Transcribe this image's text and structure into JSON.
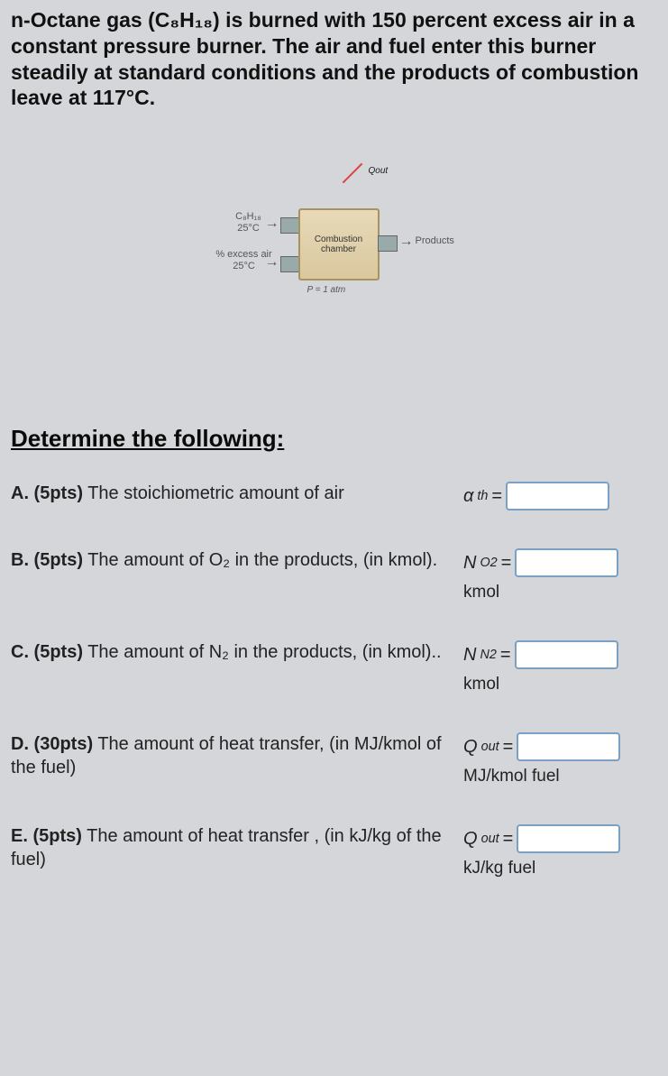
{
  "problem": {
    "line": "n-Octane gas (C₈H₁₈) is burned with 150 percent excess air in a constant pressure burner. The air and fuel enter this burner steadily at standard conditions and the products of combustion leave at 117°C."
  },
  "diagram": {
    "fuel_label_line1": "C₈H₁₈",
    "fuel_label_line2": "25°C",
    "air_label_line1": "% excess air",
    "air_label_line2": "25°C",
    "chamber_line1": "Combustion",
    "chamber_line2": "chamber",
    "pressure": "P = 1 atm",
    "products": "Products",
    "qout": "Qout"
  },
  "determine": "Determine the following:",
  "questions": {
    "A": {
      "pts": "A. (5pts)",
      "text": " The stoichiometric amount of air",
      "var": "α",
      "sub": "th",
      "unit": ""
    },
    "B": {
      "pts": "B. (5pts)",
      "text": " The amount of O₂ in the products, (in kmol).",
      "var": "N",
      "sub": "O2",
      "unit": "kmol"
    },
    "C": {
      "pts": "C. (5pts)",
      "text": " The amount of N₂ in the products, (in kmol)..",
      "var": "N",
      "sub": "N2",
      "unit": "kmol"
    },
    "D": {
      "pts": "D. (30pts)",
      "text": " The amount of heat transfer, (in MJ/kmol of the fuel)",
      "var": "Q",
      "sub": "out",
      "unit": "MJ/kmol fuel"
    },
    "E": {
      "pts": "E. (5pts)",
      "text": " The amount of heat transfer , (in kJ/kg of the fuel)",
      "var": "Q",
      "sub": "out",
      "unit": "kJ/kg fuel"
    }
  }
}
